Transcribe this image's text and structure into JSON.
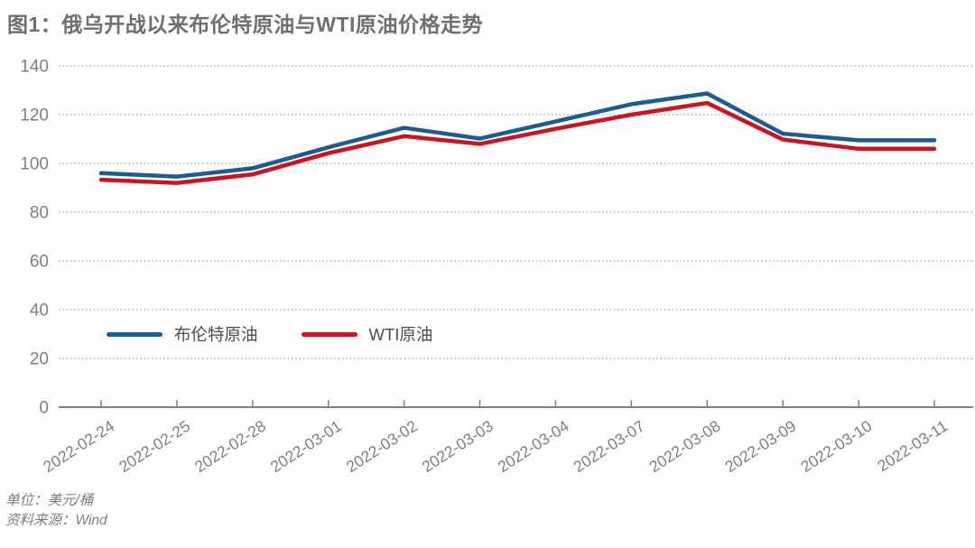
{
  "page": {
    "title": "图1：俄乌开战以来布伦特原油与WTI原油价格走势",
    "footnotes": [
      "单位：美元/桶",
      "资料来源：Wind"
    ]
  },
  "colors": {
    "title": "#6f6f6f",
    "axis": "#808080",
    "tick_label": "#7f7f7f",
    "gridline": "#9e9e9e",
    "footnote": "#7f7f7f",
    "legend_label": "#4d4d4d",
    "brent_line": "#1b5c94",
    "wti_line": "#d0121f"
  },
  "chart_data": {
    "type": "line",
    "title": "图1：俄乌开战以来布伦特原油与WTI原油价格走势",
    "categories": [
      "2022-02-24",
      "2022-02-25",
      "2022-02-28",
      "2022-03-01",
      "2022-03-02",
      "2022-03-03",
      "2022-03-04",
      "2022-03-07",
      "2022-03-08",
      "2022-03-09",
      "2022-03-10",
      "2022-03-11"
    ],
    "series": [
      {
        "name": "布伦特原油",
        "color": "#1b5c94",
        "values": [
          96.0,
          94.6,
          98.0,
          106.6,
          114.6,
          110.2,
          117.2,
          124.3,
          128.7,
          112.2,
          109.5,
          109.5
        ]
      },
      {
        "name": "WTI原油",
        "color": "#d0121f",
        "values": [
          93.3,
          92.0,
          95.5,
          104.2,
          111.2,
          108.0,
          114.2,
          120.0,
          124.8,
          109.8,
          106.0,
          106.0
        ]
      }
    ],
    "ylim": [
      0,
      140
    ],
    "yticks": [
      0,
      20,
      40,
      60,
      80,
      100,
      120,
      140
    ],
    "ytick_interval": 20,
    "xlabel": "",
    "ylabel": "",
    "unit": "美元/桶",
    "source": "Wind",
    "grid": "horizontal-dotted",
    "x_label_rotation_deg": -33,
    "legend_position": "inside-left-bottom"
  }
}
